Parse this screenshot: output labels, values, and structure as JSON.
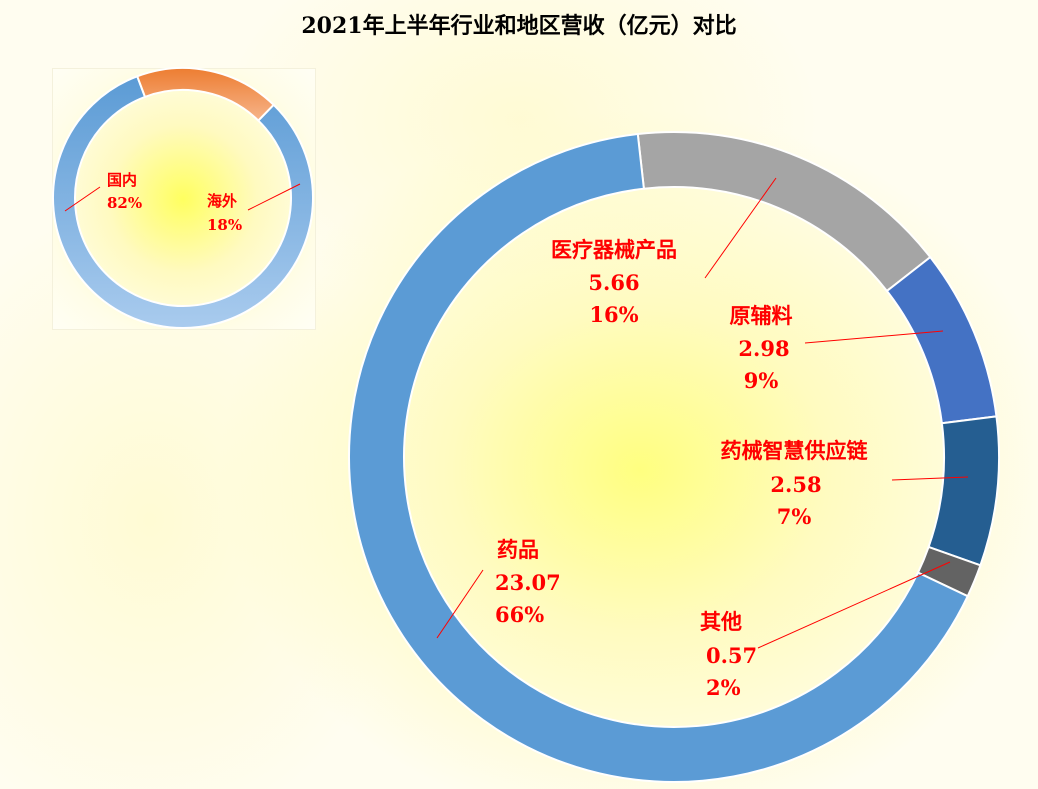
{
  "title": "2021年上半年行业和地区营收（亿元）对比",
  "chart_data": [
    {
      "type": "pie",
      "subtype": "doughnut",
      "slices": [
        {
          "name": "国内",
          "percent": "82%",
          "value": 82,
          "color": "#5b9bd5"
        },
        {
          "name": "海外",
          "percent": "18%",
          "value": 18,
          "color": "#ed7d31"
        }
      ]
    },
    {
      "type": "pie",
      "subtype": "doughnut",
      "slices": [
        {
          "name": "医疗器械产品",
          "value": 5.66,
          "value_label": "5.66",
          "percent": "16%",
          "color": "#a5a5a5"
        },
        {
          "name": "原辅料",
          "value": 2.98,
          "value_label": "2.98",
          "percent": "9%",
          "color": "#4472c4"
        },
        {
          "name": "药械智慧供应链",
          "value": 2.58,
          "value_label": "2.58",
          "percent": "7%",
          "color": "#255e91"
        },
        {
          "name": "其他",
          "value": 0.57,
          "value_label": "0.57",
          "percent": "2%",
          "color": "#636363"
        },
        {
          "name": "药品",
          "value": 23.07,
          "value_label": "23.07",
          "percent": "66%",
          "color": "#5b9bd5"
        }
      ]
    }
  ]
}
